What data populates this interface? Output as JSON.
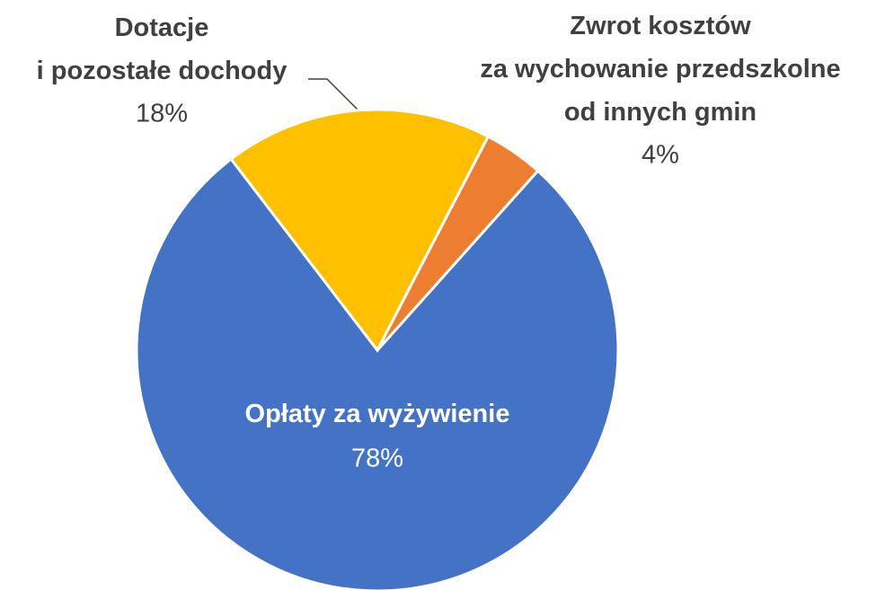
{
  "chart_data": {
    "type": "pie",
    "categories": [
      "Opłaty za wyżywienie",
      "Dotacje\ni pozostałe dochody",
      "Zwrot kosztów\nza wychowanie przedszkolne\nod innych gmin"
    ],
    "values": [
      78,
      18,
      4
    ],
    "value_labels": [
      "78%",
      "18%",
      "4%"
    ],
    "colors": [
      "#4472c4",
      "#ffc000",
      "#ed7d31"
    ]
  }
}
